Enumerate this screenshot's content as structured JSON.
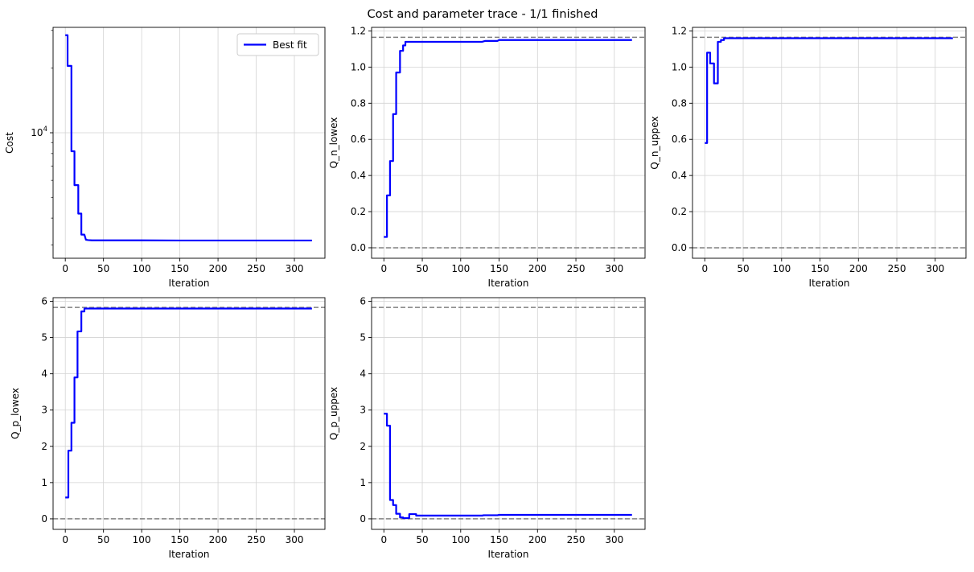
{
  "figure": {
    "title": "Cost and parameter trace - 1/1 finished"
  },
  "colors": {
    "line": "#0000ff",
    "ref": "#808080",
    "grid": "#d3d3d3"
  },
  "chart_data": [
    {
      "type": "line",
      "ylabel": "Cost",
      "xlabel": "Iteration",
      "yscale": "log",
      "ylim": [
        2600,
        31000
      ],
      "xlim": [
        -16,
        340
      ],
      "xticks": [
        0,
        50,
        100,
        150,
        200,
        250,
        300
      ],
      "yticks": [
        {
          "value": 10000,
          "base": "10",
          "exp": "4"
        }
      ],
      "minor_yticks": [
        3000,
        4000,
        5000,
        6000,
        7000,
        8000,
        9000,
        20000,
        30000
      ],
      "grid": true,
      "legend": {
        "position": "top-right",
        "entries": [
          "Best fit"
        ]
      },
      "series": [
        {
          "name": "Best fit",
          "points": [
            [
              0,
              28500
            ],
            [
              3,
              28500
            ],
            [
              3,
              20500
            ],
            [
              8,
              20500
            ],
            [
              8,
              8200
            ],
            [
              12,
              8200
            ],
            [
              12,
              5700
            ],
            [
              17,
              5700
            ],
            [
              17,
              4200
            ],
            [
              21,
              4200
            ],
            [
              21,
              3350
            ],
            [
              25,
              3350
            ],
            [
              27,
              3170
            ],
            [
              30,
              3160
            ],
            [
              35,
              3150
            ],
            [
              50,
              3150
            ],
            [
              100,
              3150
            ],
            [
              150,
              3145
            ],
            [
              200,
              3145
            ],
            [
              250,
              3145
            ],
            [
              300,
              3145
            ],
            [
              323,
              3145
            ]
          ]
        }
      ],
      "ref_lines": []
    },
    {
      "type": "line",
      "ylabel": "Q_n_lowex",
      "xlabel": "Iteration",
      "ylim": [
        -0.058,
        1.22
      ],
      "xlim": [
        -16,
        340
      ],
      "xticks": [
        0,
        50,
        100,
        150,
        200,
        250,
        300
      ],
      "yticks": [
        0.0,
        0.2,
        0.4,
        0.6,
        0.8,
        1.0,
        1.2
      ],
      "ytick_labels": [
        "0.0",
        "0.2",
        "0.4",
        "0.6",
        "0.8",
        "1.0",
        "1.2"
      ],
      "grid": true,
      "series": [
        {
          "points": [
            [
              0,
              0.06
            ],
            [
              4,
              0.06
            ],
            [
              4,
              0.29
            ],
            [
              8,
              0.29
            ],
            [
              8,
              0.48
            ],
            [
              12,
              0.48
            ],
            [
              12,
              0.74
            ],
            [
              16,
              0.74
            ],
            [
              16,
              0.97
            ],
            [
              21,
              0.97
            ],
            [
              21,
              1.09
            ],
            [
              25,
              1.09
            ],
            [
              25,
              1.12
            ],
            [
              28,
              1.12
            ],
            [
              28,
              1.14
            ],
            [
              60,
              1.14
            ],
            [
              128,
              1.14
            ],
            [
              132,
              1.145
            ],
            [
              148,
              1.145
            ],
            [
              150,
              1.15
            ],
            [
              323,
              1.15
            ]
          ]
        }
      ],
      "ref_lines": [
        0,
        1.165
      ]
    },
    {
      "type": "line",
      "ylabel": "Q_n_uppex",
      "xlabel": "Iteration",
      "ylim": [
        -0.058,
        1.22
      ],
      "xlim": [
        -16,
        340
      ],
      "xticks": [
        0,
        50,
        100,
        150,
        200,
        250,
        300
      ],
      "yticks": [
        0.0,
        0.2,
        0.4,
        0.6,
        0.8,
        1.0,
        1.2
      ],
      "ytick_labels": [
        "0.0",
        "0.2",
        "0.4",
        "0.6",
        "0.8",
        "1.0",
        "1.2"
      ],
      "grid": true,
      "series": [
        {
          "points": [
            [
              0,
              0.58
            ],
            [
              3,
              0.58
            ],
            [
              3,
              1.08
            ],
            [
              7,
              1.08
            ],
            [
              7,
              1.02
            ],
            [
              12,
              1.02
            ],
            [
              12,
              0.91
            ],
            [
              17,
              0.91
            ],
            [
              17,
              1.14
            ],
            [
              21,
              1.14
            ],
            [
              21,
              1.15
            ],
            [
              25,
              1.15
            ],
            [
              25,
              1.16
            ],
            [
              30,
              1.16
            ],
            [
              323,
              1.16
            ]
          ]
        }
      ],
      "ref_lines": [
        0,
        1.165
      ]
    },
    {
      "type": "line",
      "ylabel": "Q_p_lowex",
      "xlabel": "Iteration",
      "ylim": [
        -0.29,
        6.1
      ],
      "xlim": [
        -16,
        340
      ],
      "xticks": [
        0,
        50,
        100,
        150,
        200,
        250,
        300
      ],
      "yticks": [
        0,
        1,
        2,
        3,
        4,
        5,
        6
      ],
      "ytick_labels": [
        "0",
        "1",
        "2",
        "3",
        "4",
        "5",
        "6"
      ],
      "grid": true,
      "series": [
        {
          "points": [
            [
              0,
              0.59
            ],
            [
              4,
              0.59
            ],
            [
              4,
              1.88
            ],
            [
              8,
              1.88
            ],
            [
              8,
              2.65
            ],
            [
              12,
              2.65
            ],
            [
              12,
              3.9
            ],
            [
              16,
              3.9
            ],
            [
              16,
              5.17
            ],
            [
              21,
              5.17
            ],
            [
              21,
              5.72
            ],
            [
              25,
              5.72
            ],
            [
              25,
              5.8
            ],
            [
              30,
              5.8
            ],
            [
              323,
              5.8
            ]
          ]
        }
      ],
      "ref_lines": [
        0,
        5.83
      ]
    },
    {
      "type": "line",
      "ylabel": "Q_p_uppex",
      "xlabel": "Iteration",
      "ylim": [
        -0.29,
        6.1
      ],
      "xlim": [
        -16,
        340
      ],
      "xticks": [
        0,
        50,
        100,
        150,
        200,
        250,
        300
      ],
      "yticks": [
        0,
        1,
        2,
        3,
        4,
        5,
        6
      ],
      "ytick_labels": [
        "0",
        "1",
        "2",
        "3",
        "4",
        "5",
        "6"
      ],
      "grid": true,
      "series": [
        {
          "points": [
            [
              0,
              2.9
            ],
            [
              4,
              2.9
            ],
            [
              4,
              2.57
            ],
            [
              8,
              2.57
            ],
            [
              8,
              0.52
            ],
            [
              12,
              0.52
            ],
            [
              12,
              0.38
            ],
            [
              16,
              0.38
            ],
            [
              16,
              0.14
            ],
            [
              21,
              0.14
            ],
            [
              21,
              0.04
            ],
            [
              25,
              0.04
            ],
            [
              25,
              0.02
            ],
            [
              33,
              0.02
            ],
            [
              33,
              0.13
            ],
            [
              42,
              0.13
            ],
            [
              42,
              0.09
            ],
            [
              50,
              0.09
            ],
            [
              128,
              0.09
            ],
            [
              130,
              0.1
            ],
            [
              148,
              0.1
            ],
            [
              150,
              0.11
            ],
            [
              323,
              0.11
            ]
          ]
        }
      ],
      "ref_lines": [
        0,
        5.83
      ]
    }
  ]
}
